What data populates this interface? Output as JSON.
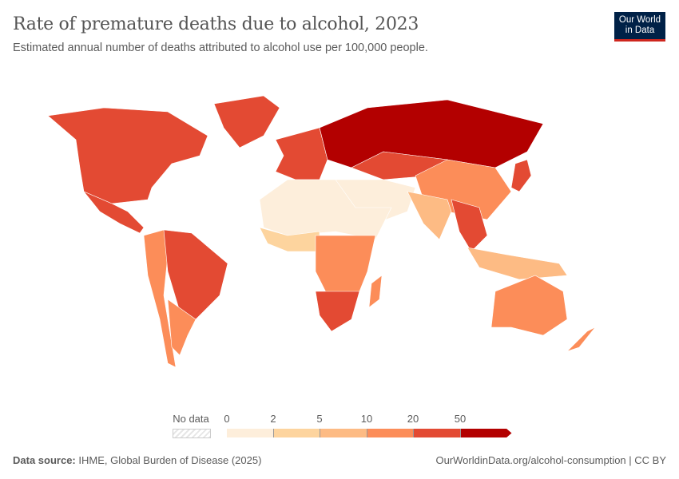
{
  "title": "Rate of premature deaths due to alcohol, 2023",
  "subtitle": "Estimated annual number of deaths attributed to alcohol use per 100,000 people.",
  "logo": "Our World in Data",
  "legend": {
    "no_data_label": "No data",
    "ticks": [
      "0",
      "2",
      "5",
      "10",
      "20",
      "50"
    ],
    "bins": [
      {
        "range": "0-2",
        "color": "#fdeedb"
      },
      {
        "range": "2-5",
        "color": "#fdd49e"
      },
      {
        "range": "5-10",
        "color": "#fdbb84"
      },
      {
        "range": "10-20",
        "color": "#fc8d59"
      },
      {
        "range": "20-50",
        "color": "#e34a33"
      },
      {
        "range": "50+",
        "color": "#b30000"
      }
    ]
  },
  "map_regions": {
    "north-america": "#e34a33",
    "greenland": "#e34a33",
    "mexico-central-america": "#e34a33",
    "andean-south-america": "#fc8d59",
    "brazil": "#e34a33",
    "southern-cone": "#fc8d59",
    "western-europe": "#e34a33",
    "eastern-europe-russia": "#b30000",
    "north-africa": "#fdeedb",
    "west-africa": "#fdd49e",
    "central-africa": "#fc8d59",
    "southern-africa": "#e34a33",
    "middle-east": "#fdeedb",
    "central-asia": "#e34a33",
    "china": "#fc8d59",
    "india": "#fdbb84",
    "southeast-asia": "#e34a33",
    "indonesia": "#fdbb84",
    "australia": "#fc8d59",
    "new-zealand": "#fc8d59",
    "madagascar": "#fc8d59",
    "japan": "#e34a33"
  },
  "footer": {
    "source_label": "Data source:",
    "source": "IHME, Global Burden of Disease (2025)",
    "url": "OurWorldinData.org/alcohol-consumption | CC BY"
  }
}
